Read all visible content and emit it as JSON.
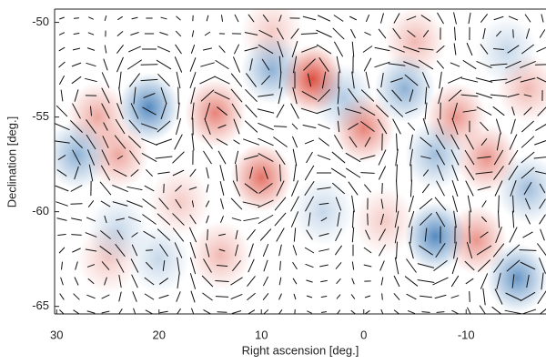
{
  "chart_data": {
    "type": "heatmap",
    "xlabel": "Right ascension [deg.]",
    "ylabel": "Declination [deg.]",
    "xlim": [
      30.2,
      -17.8
    ],
    "ylim": [
      -65.4,
      -49.3
    ],
    "xticks": [
      30,
      20,
      10,
      0,
      -10
    ],
    "yticks": [
      -50,
      -55,
      -60,
      -65
    ],
    "positive_color": "#d7301f",
    "negative_color": "#2166ac",
    "x": [
      5,
      14.5,
      26,
      24,
      10,
      0,
      -9,
      -12,
      -5,
      -11,
      -2,
      14,
      18,
      -16,
      9,
      25,
      21,
      28,
      9,
      -4,
      -7,
      -15,
      -7,
      2,
      -16,
      24,
      20,
      4,
      -14
    ],
    "y": [
      -53,
      -54.8,
      -55,
      -57,
      -58.2,
      -55.6,
      -55,
      -57.2,
      -51,
      -61.5,
      -60.5,
      -62.3,
      -59.5,
      -53.5,
      -50.5,
      -62.5,
      -54.5,
      -57,
      -52.5,
      -53.5,
      -61.3,
      -63.5,
      -57,
      -54,
      -58.8,
      -61,
      -62.5,
      -60,
      -51.5
    ],
    "values": [
      1,
      0.7,
      0.5,
      0.5,
      0.8,
      0.7,
      0.6,
      0.6,
      0.4,
      0.6,
      0.3,
      0.4,
      0.3,
      0.4,
      0.3,
      0.3,
      -0.9,
      -0.6,
      -0.6,
      -0.6,
      -0.9,
      -0.8,
      -0.5,
      -0.4,
      -0.5,
      -0.3,
      -0.3,
      -0.3,
      -0.3
    ]
  }
}
